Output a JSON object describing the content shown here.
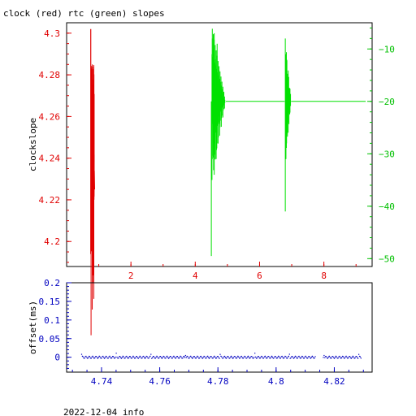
{
  "chart_data": [
    {
      "type": "line",
      "title": "clock (red) rtc (green) slopes",
      "ylabel": "clockslope",
      "x_ticks": [
        "2",
        "4",
        "6",
        "8"
      ],
      "xlim": [
        0,
        9.5
      ],
      "ylim_left": [
        4.188,
        4.305
      ],
      "ylim_right": [
        -51.5,
        -5
      ],
      "y_ticks_left": [
        "4.3",
        "4.28",
        "4.26",
        "4.24",
        "4.22",
        "4.2"
      ],
      "y_ticks_right": [
        "-10",
        "-20",
        "-30",
        "-40",
        "-50"
      ],
      "colors": {
        "clock": "#e00000",
        "rtc": "#00e000",
        "axis_left": "#e00000",
        "axis_right": "#00c000"
      },
      "series": [
        {
          "axis": "left",
          "color": "#e00000",
          "x": [
            0.75,
            0.75,
            0.76,
            0.77,
            0.77,
            0.78,
            0.79,
            0.8,
            0.81,
            0.82,
            0.83,
            0.85,
            0.86,
            0.87
          ],
          "y": [
            4.302,
            4.194,
            4.283,
            4.258,
            4.275,
            4.264,
            4.284,
            4.206,
            4.243,
            4.212,
            4.238,
            4.22,
            4.234,
            4.225
          ]
        },
        {
          "axis": "right",
          "color": "#00e000",
          "x": [
            4.5,
            4.51,
            4.53,
            4.55,
            4.57,
            4.6,
            4.63,
            4.66,
            4.7,
            4.74,
            4.78,
            4.82,
            4.86,
            4.9,
            5.0,
            5.5,
            6.0,
            6.5,
            6.8,
            6.81,
            6.82,
            6.84,
            6.86,
            6.88,
            6.9,
            6.92,
            6.95,
            7.0,
            7.5,
            8.0,
            9.3
          ],
          "y": [
            -20,
            -49.5,
            -31,
            -10,
            -28,
            -8,
            -34,
            -13,
            -31,
            -16,
            -28,
            -18,
            -22,
            -20,
            -20,
            -20,
            -20.2,
            -20,
            -20,
            -8,
            -41,
            -12,
            -31,
            -16,
            -26,
            -19,
            -22,
            -20,
            -20,
            -20.1,
            -20
          ]
        }
      ]
    },
    {
      "type": "scatter",
      "ylabel": "offset(ms)",
      "x_ticks": [
        "4.74",
        "4.76",
        "4.78",
        "4.8",
        "4.82"
      ],
      "y_ticks": [
        "0.2",
        "0.15",
        "0.1",
        "0.05",
        "0"
      ],
      "xlim": [
        4.728,
        4.833
      ],
      "ylim": [
        -0.04,
        0.2
      ],
      "colors": {
        "points": "#0000c0",
        "axis": "#0000c0"
      },
      "series": [
        {
          "color": "#0000c0",
          "x_range": [
            4.733,
            4.829
          ],
          "y_center": 0.0,
          "note_gaps": [
            [
              4.8135,
              4.816
            ]
          ]
        }
      ]
    }
  ],
  "footer": {
    "text": "2022-12-04 info"
  }
}
